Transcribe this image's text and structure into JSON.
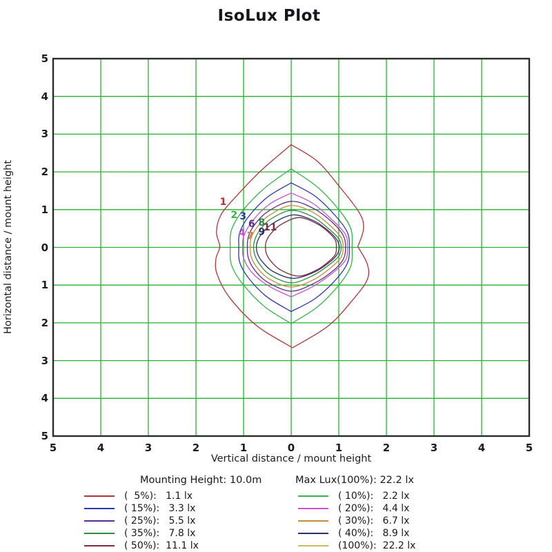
{
  "title": "IsoLux Plot",
  "chart_data": {
    "type": "contour",
    "title": "IsoLux Plot",
    "xlabel": "Vertical distance / mount height",
    "ylabel": "Horizontal distance / mount height",
    "xlim": [
      -5,
      5
    ],
    "ylim": [
      -5,
      5
    ],
    "grid": true,
    "grid_step": 1,
    "grid_color": "#25b32c",
    "border_color": "#2b2b2b",
    "x_tick_labels": [
      "5",
      "4",
      "3",
      "2",
      "1",
      "0",
      "1",
      "2",
      "3",
      "4",
      "5"
    ],
    "y_tick_labels": [
      "5",
      "4",
      "3",
      "2",
      "1",
      "0",
      "1",
      "2",
      "3",
      "4",
      "5"
    ],
    "mounting_height_label": "Mounting Height: 10.0m",
    "max_lux_label": "Max Lux(100%): 22.2 lx",
    "mounting_height_m": 10.0,
    "max_lux_lx": 22.2,
    "contours": [
      {
        "percent": 5,
        "lux": 1.1,
        "label": "1",
        "color": "#b23436",
        "legend_text": "(  5%):   1.1 lx",
        "label_pos": [
          -1.43,
          1.12
        ],
        "points": [
          [
            0,
            2.72
          ],
          [
            0,
            2.72
          ],
          [
            0.55,
            2.28
          ],
          [
            1.02,
            1.6
          ],
          [
            1.43,
            0.92
          ],
          [
            1.52,
            0.5
          ],
          [
            1.4,
            0.02
          ],
          [
            1.4,
            0.02
          ],
          [
            1.6,
            -0.45
          ],
          [
            1.6,
            -0.85
          ],
          [
            1.32,
            -1.35
          ],
          [
            0.78,
            -2.08
          ],
          [
            0.03,
            -2.66
          ],
          [
            0.03,
            -2.66
          ],
          [
            -0.72,
            -2.08
          ],
          [
            -1.3,
            -1.32
          ],
          [
            -1.56,
            -0.7
          ],
          [
            -1.58,
            -0.3
          ],
          [
            -1.5,
            0.02
          ],
          [
            -1.57,
            0.4
          ],
          [
            -1.48,
            0.85
          ],
          [
            -1.18,
            1.32
          ],
          [
            -0.62,
            2.05
          ]
        ]
      },
      {
        "percent": 10,
        "lux": 2.2,
        "label": "2",
        "color": "#35b44a",
        "legend_text": "( 10%):   2.2 lx",
        "label_pos": [
          -1.2,
          0.78
        ],
        "points": [
          [
            0,
            2.08
          ],
          [
            0,
            2.08
          ],
          [
            0.55,
            1.6
          ],
          [
            1.0,
            1.0
          ],
          [
            1.25,
            0.5
          ],
          [
            1.28,
            0
          ],
          [
            1.25,
            -0.5
          ],
          [
            1.0,
            -1.0
          ],
          [
            0.55,
            -1.58
          ],
          [
            0,
            -2.02
          ],
          [
            0,
            -2.02
          ],
          [
            -0.55,
            -1.58
          ],
          [
            -1.0,
            -1.0
          ],
          [
            -1.25,
            -0.48
          ],
          [
            -1.28,
            0
          ],
          [
            -1.25,
            0.48
          ],
          [
            -1.0,
            1.0
          ],
          [
            -0.55,
            1.58
          ]
        ]
      },
      {
        "percent": 15,
        "lux": 3.3,
        "label": "3",
        "color": "#2c35b0",
        "legend_text": "( 15%):   3.3 lx",
        "label_pos": [
          -1.01,
          0.74
        ],
        "points": [
          [
            0,
            1.71
          ],
          [
            0,
            1.71
          ],
          [
            0.5,
            1.36
          ],
          [
            0.92,
            0.85
          ],
          [
            1.18,
            0.4
          ],
          [
            1.22,
            0
          ],
          [
            1.18,
            -0.42
          ],
          [
            0.92,
            -0.88
          ],
          [
            0.5,
            -1.36
          ],
          [
            0,
            -1.7
          ],
          [
            0,
            -1.7
          ],
          [
            -0.5,
            -1.32
          ],
          [
            -0.88,
            -0.84
          ],
          [
            -1.08,
            -0.4
          ],
          [
            -1.1,
            0
          ],
          [
            -1.08,
            0.4
          ],
          [
            -0.88,
            0.84
          ],
          [
            -0.5,
            1.33
          ]
        ]
      },
      {
        "percent": 20,
        "lux": 4.4,
        "label": "4",
        "color": "#cc4ed2",
        "legend_text": "( 20%):   4.4 lx",
        "label_pos": [
          -1.03,
          0.3
        ],
        "points": [
          [
            0,
            1.44
          ],
          [
            0,
            1.44
          ],
          [
            0.45,
            1.17
          ],
          [
            0.85,
            0.74
          ],
          [
            1.14,
            0.34
          ],
          [
            1.18,
            0
          ],
          [
            1.14,
            -0.34
          ],
          [
            0.85,
            -0.7
          ],
          [
            0.45,
            -1.04
          ],
          [
            0,
            -1.31
          ],
          [
            0,
            -1.31
          ],
          [
            -0.45,
            -1.04
          ],
          [
            -0.8,
            -0.7
          ],
          [
            -0.99,
            -0.32
          ],
          [
            -1.02,
            0
          ],
          [
            -0.99,
            0.32
          ],
          [
            -0.8,
            0.72
          ],
          [
            -0.45,
            1.15
          ]
        ]
      },
      {
        "percent": 25,
        "lux": 5.5,
        "label": "6",
        "color": "#5c2d91",
        "legend_text": "( 25%):   5.5 lx",
        "label_pos": [
          -0.83,
          0.54
        ],
        "points": [
          [
            0,
            1.22
          ],
          [
            0.5,
            1.01
          ],
          [
            0.9,
            0.62
          ],
          [
            1.1,
            0.3
          ],
          [
            1.14,
            0
          ],
          [
            1.1,
            -0.3
          ],
          [
            0.9,
            -0.6
          ],
          [
            0.5,
            -0.94
          ],
          [
            0,
            -1.16
          ],
          [
            -0.5,
            -0.92
          ],
          [
            -0.78,
            -0.58
          ],
          [
            -0.9,
            -0.28
          ],
          [
            -0.92,
            0
          ],
          [
            -0.9,
            0.28
          ],
          [
            -0.78,
            0.58
          ],
          [
            -0.5,
            0.94
          ]
        ]
      },
      {
        "percent": 30,
        "lux": 6.7,
        "label": "7",
        "color": "#c98a3d",
        "legend_text": "( 30%):   6.7 lx",
        "label_pos": [
          -0.86,
          0.22
        ],
        "points": [
          [
            0,
            1.11
          ],
          [
            0.48,
            0.91
          ],
          [
            0.84,
            0.55
          ],
          [
            1.05,
            0.26
          ],
          [
            1.09,
            0
          ],
          [
            1.05,
            -0.26
          ],
          [
            0.84,
            -0.53
          ],
          [
            0.48,
            -0.85
          ],
          [
            0,
            -1.05
          ],
          [
            -0.47,
            -0.83
          ],
          [
            -0.73,
            -0.51
          ],
          [
            -0.84,
            -0.25
          ],
          [
            -0.86,
            0
          ],
          [
            -0.84,
            0.25
          ],
          [
            -0.73,
            0.51
          ],
          [
            -0.47,
            0.84
          ]
        ]
      },
      {
        "percent": 35,
        "lux": 7.8,
        "label": "8",
        "color": "#2e8b44",
        "legend_text": "( 35%):   7.8 lx",
        "label_pos": [
          -0.62,
          0.58
        ],
        "points": [
          [
            0,
            0.98
          ],
          [
            0.45,
            0.81
          ],
          [
            0.79,
            0.49
          ],
          [
            1.0,
            0.23
          ],
          [
            1.05,
            0
          ],
          [
            1.0,
            -0.23
          ],
          [
            0.79,
            -0.47
          ],
          [
            0.45,
            -0.75
          ],
          [
            0,
            -0.94
          ],
          [
            -0.44,
            -0.73
          ],
          [
            -0.66,
            -0.45
          ],
          [
            -0.76,
            -0.22
          ],
          [
            -0.79,
            0
          ],
          [
            -0.76,
            0.22
          ],
          [
            -0.66,
            0.45
          ],
          [
            -0.44,
            0.74
          ]
        ]
      },
      {
        "percent": 40,
        "lux": 8.9,
        "label": "9",
        "color": "#28306e",
        "legend_text": "( 40%):   8.9 lx",
        "label_pos": [
          -0.62,
          0.33
        ],
        "points": [
          [
            0.04,
            0.86
          ],
          [
            0.48,
            0.7
          ],
          [
            0.79,
            0.43
          ],
          [
            0.96,
            0.2
          ],
          [
            1.01,
            0
          ],
          [
            0.96,
            -0.2
          ],
          [
            0.79,
            -0.41
          ],
          [
            0.48,
            -0.66
          ],
          [
            0.04,
            -0.82
          ],
          [
            -0.38,
            -0.64
          ],
          [
            -0.6,
            -0.39
          ],
          [
            -0.7,
            -0.19
          ],
          [
            -0.73,
            0
          ],
          [
            -0.7,
            0.19
          ],
          [
            -0.6,
            0.39
          ],
          [
            -0.38,
            0.64
          ]
        ]
      },
      {
        "percent": 50,
        "lux": 11.1,
        "label": "11",
        "color": "#7e2a3c",
        "legend_text": "( 50%):  11.1 lx",
        "label_pos": [
          -0.44,
          0.45
        ],
        "points": [
          [
            0.16,
            0.79
          ],
          [
            0.55,
            0.62
          ],
          [
            0.81,
            0.37
          ],
          [
            0.93,
            0.18
          ],
          [
            0.95,
            0
          ],
          [
            0.93,
            -0.18
          ],
          [
            0.81,
            -0.35
          ],
          [
            0.55,
            -0.59
          ],
          [
            0.16,
            -0.76
          ],
          [
            -0.22,
            -0.6
          ],
          [
            -0.43,
            -0.36
          ],
          [
            -0.52,
            -0.17
          ],
          [
            -0.54,
            0
          ],
          [
            -0.52,
            0.17
          ],
          [
            -0.43,
            0.36
          ],
          [
            -0.22,
            0.6
          ]
        ]
      },
      {
        "percent": 100,
        "lux": 22.2,
        "label": null,
        "color": "#c5bd5a",
        "legend_text": "(100%):  22.2 lx",
        "label_pos": null,
        "points": []
      }
    ],
    "legend_position": "bottom"
  }
}
